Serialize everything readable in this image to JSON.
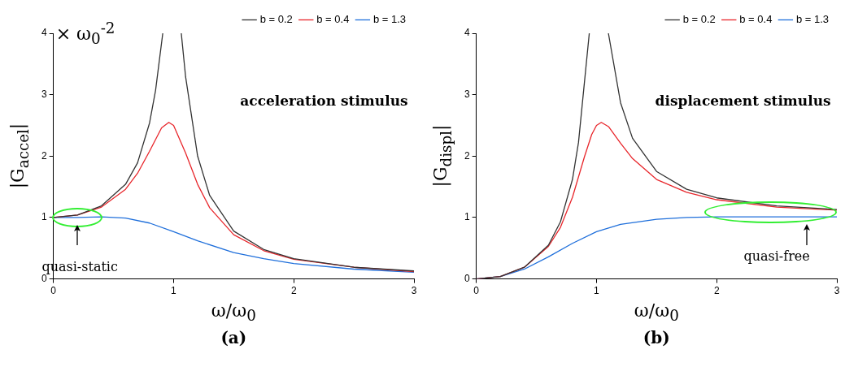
{
  "chart_data": [
    {
      "type": "line",
      "title": "(a)",
      "xlabel": "ω/ω$_{0}$",
      "ylabel": "|G$_{accel}$|",
      "xlim": [
        0,
        3
      ],
      "xticks": [
        0,
        1,
        2,
        3
      ],
      "ylim": [
        0,
        4
      ],
      "yticks": [
        0,
        1,
        2,
        3,
        4
      ],
      "legend": "top right",
      "marker": "none",
      "annotations": [
        "× ω$_{0}$$^{-2}$",
        "acceleration stimulus",
        "quasi-static"
      ],
      "series": [
        {
          "name": "b = 0.2",
          "color": "#333333",
          "x": [
            0,
            0.2,
            0.4,
            0.6,
            0.7,
            0.8,
            0.85,
            0.91,
            1.0,
            1.064,
            1.1,
            1.2,
            1.3,
            1.5,
            1.75,
            2,
            2.5,
            3
          ],
          "values": [
            1,
            1.04,
            1.19,
            1.54,
            1.89,
            2.54,
            3.07,
            4,
            null,
            4,
            3.29,
            2.0,
            1.36,
            0.78,
            0.48,
            0.33,
            0.19,
            0.13
          ]
        },
        {
          "name": "b = 0.4",
          "color": "#e8262b",
          "x": [
            0,
            0.2,
            0.4,
            0.6,
            0.7,
            0.8,
            0.9,
            0.96,
            1.0,
            1.1,
            1.2,
            1.3,
            1.5,
            1.75,
            2,
            2.5,
            3
          ],
          "values": [
            1,
            1.04,
            1.17,
            1.46,
            1.72,
            2.08,
            2.46,
            2.55,
            2.5,
            2.05,
            1.54,
            1.16,
            0.72,
            0.46,
            0.32,
            0.19,
            0.12
          ]
        },
        {
          "name": "b = 1.3",
          "color": "#1f6fdb",
          "x": [
            0,
            0.2,
            0.4,
            0.6,
            0.8,
            1.0,
            1.2,
            1.5,
            1.75,
            2,
            2.5,
            3
          ],
          "values": [
            1,
            1.0,
            1.01,
            0.99,
            0.91,
            0.77,
            0.62,
            0.43,
            0.33,
            0.25,
            0.16,
            0.11
          ]
        }
      ]
    },
    {
      "type": "line",
      "title": "(b)",
      "xlabel": "ω/ω$_{0}$",
      "ylabel": "|G$_{displ}$|",
      "xlim": [
        0,
        3
      ],
      "xticks": [
        0,
        1,
        2,
        3
      ],
      "ylim": [
        0,
        4
      ],
      "yticks": [
        0,
        1,
        2,
        3,
        4
      ],
      "legend": "top right",
      "marker": "none",
      "annotations": [
        "displacement stimulus",
        "quasi-free"
      ],
      "series": [
        {
          "name": "b = 0.2",
          "color": "#333333",
          "x": [
            0,
            0.2,
            0.4,
            0.6,
            0.7,
            0.8,
            0.85,
            0.94,
            1.0,
            1.099,
            1.2,
            1.3,
            1.5,
            1.75,
            2,
            2.5,
            3
          ],
          "values": [
            0,
            0.04,
            0.19,
            0.55,
            0.93,
            1.62,
            2.22,
            4,
            null,
            4,
            2.87,
            2.29,
            1.75,
            1.46,
            1.32,
            1.19,
            1.13
          ]
        },
        {
          "name": "b = 0.4",
          "color": "#e8262b",
          "x": [
            0,
            0.2,
            0.4,
            0.6,
            0.7,
            0.8,
            0.9,
            0.96,
            1.0,
            1.04,
            1.1,
            1.2,
            1.3,
            1.5,
            1.75,
            2,
            2.5,
            3
          ],
          "values": [
            0,
            0.04,
            0.19,
            0.53,
            0.84,
            1.33,
            1.99,
            2.35,
            2.5,
            2.55,
            2.48,
            2.21,
            1.96,
            1.62,
            1.41,
            1.29,
            1.17,
            1.12
          ]
        },
        {
          "name": "b = 1.3",
          "color": "#1f6fdb",
          "x": [
            0,
            0.2,
            0.4,
            0.6,
            0.8,
            1.0,
            1.2,
            1.5,
            1.75,
            2,
            2.5,
            3
          ],
          "values": [
            0,
            0.04,
            0.16,
            0.36,
            0.58,
            0.77,
            0.89,
            0.97,
            1.0,
            1.01,
            1.01,
            1.01
          ]
        }
      ]
    }
  ]
}
